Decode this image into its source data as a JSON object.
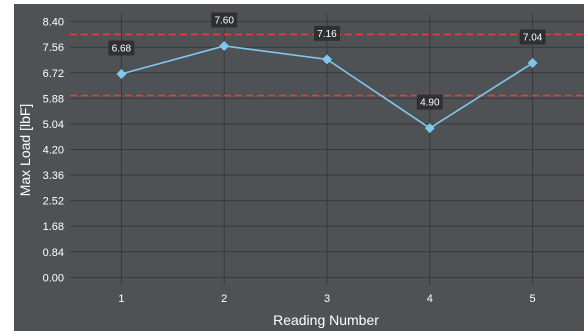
{
  "chart_data": {
    "type": "line",
    "xlabel": "Reading Number",
    "ylabel": "Max Load [lbF]",
    "x": [
      1,
      2,
      3,
      4,
      5
    ],
    "xticks": [
      "1",
      "2",
      "3",
      "4",
      "5"
    ],
    "xlim": [
      0.5,
      5.5
    ],
    "ylim": [
      -0.25,
      8.65
    ],
    "yticks": [
      "0.00",
      "0.84",
      "1.68",
      "2.52",
      "3.36",
      "4.20",
      "5.04",
      "5.88",
      "6.72",
      "7.56",
      "8.40"
    ],
    "series": [
      {
        "values": [
          6.68,
          7.6,
          7.16,
          4.9,
          7.04
        ],
        "labels": [
          "6.68",
          "7.60",
          "7.16",
          "4.90",
          "7.04"
        ]
      }
    ],
    "limit_lines": [
      5.97,
      7.98
    ],
    "grid": true,
    "colors": {
      "background": "#4f5254",
      "grid": "#37393b",
      "series": "#7ec8ee",
      "limit": "#e0403c",
      "label_bg": "#2e3032",
      "text": "#ffffff"
    }
  }
}
